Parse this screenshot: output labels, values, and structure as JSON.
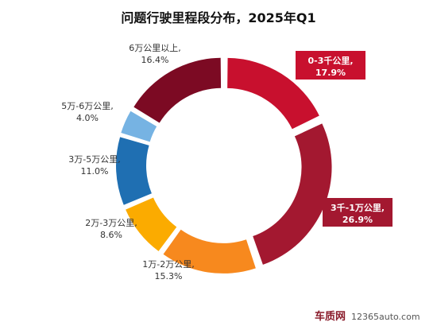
{
  "chart_data": {
    "type": "pie",
    "title": "问题行驶里程段分布，2025年Q1",
    "start_angle_deg": 0,
    "direction": "clockwise",
    "slices": [
      {
        "name": "0-3千公里,",
        "value": 17.9,
        "value_label": "17.9%",
        "color": "#c8102e",
        "highlight": true
      },
      {
        "name": "3千-1万公里,",
        "value": 26.9,
        "value_label": "26.9%",
        "color": "#a31830",
        "highlight": true
      },
      {
        "name": "1万-2万公里,",
        "value": 15.3,
        "value_label": "15.3%",
        "color": "#f7891e",
        "highlight": false
      },
      {
        "name": "2万-3万公里,",
        "value": 8.6,
        "value_label": "8.6%",
        "color": "#fbab00",
        "highlight": false
      },
      {
        "name": "3万-5万公里,",
        "value": 11.0,
        "value_label": "11.0%",
        "color": "#1f6fb2",
        "highlight": false
      },
      {
        "name": "5万-6万公里,",
        "value": 4.0,
        "value_label": "4.0%",
        "color": "#76b3e3",
        "highlight": false
      },
      {
        "name": "6万公里以上,",
        "value": 16.4,
        "value_label": "16.4%",
        "color": "#7c0a23",
        "highlight": false
      }
    ],
    "legend": "none"
  },
  "watermark": {
    "logo": "车质网",
    "site": "12365auto.com"
  }
}
